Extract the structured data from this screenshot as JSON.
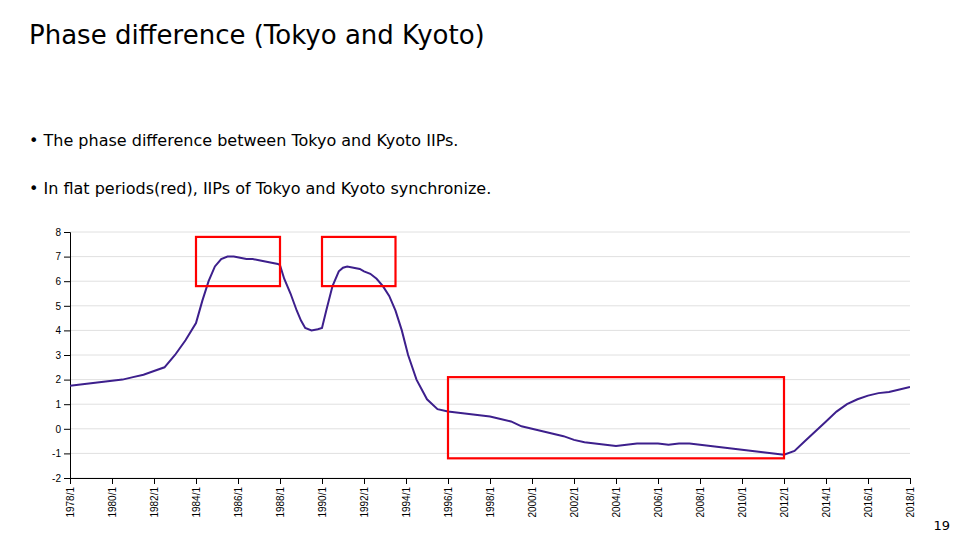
{
  "chart_data": {
    "type": "line",
    "title": "Phase difference (Tokyo and Kyoto)",
    "annotations": [
      "• The phase difference between Tokyo and Kyoto IIPs.",
      "• In flat periods(red), IIPs of Tokyo and Kyoto synchronize.",
      "19"
    ],
    "color": "#3d1f8c",
    "x": [
      1978,
      1978.5,
      1979,
      1979.5,
      1980,
      1980.5,
      1981,
      1981.5,
      1982,
      1982.5,
      1983,
      1983.5,
      1984,
      1984.3,
      1984.6,
      1984.9,
      1985.2,
      1985.5,
      1985.8,
      1986.1,
      1986.4,
      1986.7,
      1987.0,
      1987.3,
      1987.6,
      1987.9,
      1988.0,
      1988.2,
      1988.5,
      1988.8,
      1989.0,
      1989.2,
      1989.5,
      1989.8,
      1990.0,
      1990.2,
      1990.5,
      1990.8,
      1991.0,
      1991.2,
      1991.5,
      1991.8,
      1992.0,
      1992.3,
      1992.6,
      1992.9,
      1993.2,
      1993.5,
      1993.8,
      1994.1,
      1994.5,
      1995.0,
      1995.5,
      1996.0,
      1996.5,
      1997.0,
      1997.5,
      1998.0,
      1998.5,
      1999.0,
      1999.5,
      2000.0,
      2000.5,
      2001.0,
      2001.5,
      2002.0,
      2002.5,
      2003.0,
      2003.5,
      2004.0,
      2004.5,
      2005.0,
      2005.5,
      2006.0,
      2006.5,
      2007.0,
      2007.5,
      2008.0,
      2008.5,
      2009.0,
      2009.5,
      2010.0,
      2010.5,
      2011.0,
      2011.5,
      2012.0,
      2012.5,
      2013.0,
      2013.5,
      2014.0,
      2014.5,
      2015.0,
      2015.5,
      2016.0,
      2016.5,
      2017.0,
      2017.5,
      2018.0
    ],
    "values": [
      1.75,
      1.8,
      1.85,
      1.9,
      1.95,
      2.0,
      2.1,
      2.2,
      2.35,
      2.5,
      3.0,
      3.6,
      4.3,
      5.2,
      6.0,
      6.6,
      6.9,
      7.0,
      7.0,
      6.95,
      6.9,
      6.9,
      6.85,
      6.8,
      6.75,
      6.7,
      6.65,
      6.1,
      5.5,
      4.8,
      4.4,
      4.1,
      4.0,
      4.05,
      4.1,
      4.8,
      5.8,
      6.4,
      6.55,
      6.6,
      6.55,
      6.5,
      6.4,
      6.3,
      6.1,
      5.8,
      5.4,
      4.8,
      4.0,
      3.0,
      2.0,
      1.2,
      0.8,
      0.7,
      0.65,
      0.6,
      0.55,
      0.5,
      0.4,
      0.3,
      0.1,
      0.0,
      -0.1,
      -0.2,
      -0.3,
      -0.45,
      -0.55,
      -0.6,
      -0.65,
      -0.7,
      -0.65,
      -0.6,
      -0.6,
      -0.6,
      -0.65,
      -0.6,
      -0.6,
      -0.65,
      -0.7,
      -0.75,
      -0.8,
      -0.85,
      -0.9,
      -0.95,
      -1.0,
      -1.05,
      -0.9,
      -0.5,
      -0.1,
      0.3,
      0.7,
      1.0,
      1.2,
      1.35,
      1.45,
      1.5,
      1.6,
      1.7
    ],
    "xlim": [
      1978,
      2018
    ],
    "xticks": [
      {
        "value": 1978,
        "label": "1978/1"
      },
      {
        "value": 1980,
        "label": "1980/1"
      },
      {
        "value": 1982,
        "label": "1982/1"
      },
      {
        "value": 1984,
        "label": "1984/1"
      },
      {
        "value": 1986,
        "label": "1986/1"
      },
      {
        "value": 1988,
        "label": "1988/1"
      },
      {
        "value": 1990,
        "label": "1990/1"
      },
      {
        "value": 1992,
        "label": "1992/1"
      },
      {
        "value": 1994,
        "label": "1994/1"
      },
      {
        "value": 1996,
        "label": "1996/1"
      },
      {
        "value": 1998,
        "label": "1998/1"
      },
      {
        "value": 2000,
        "label": "2000/1"
      },
      {
        "value": 2002,
        "label": "2002/1"
      },
      {
        "value": 2004,
        "label": "2004/1"
      },
      {
        "value": 2006,
        "label": "2006/1"
      },
      {
        "value": 2008,
        "label": "2008/1"
      },
      {
        "value": 2010,
        "label": "2010/1"
      },
      {
        "value": 2012,
        "label": "2012/1"
      },
      {
        "value": 2014,
        "label": "2014/1"
      },
      {
        "value": 2016,
        "label": "2016/1"
      },
      {
        "value": 2018,
        "label": "2018/1"
      }
    ],
    "ylim": [
      -2,
      8
    ],
    "yticks": [
      -2,
      -1,
      0,
      1,
      2,
      3,
      4,
      5,
      6,
      7,
      8
    ],
    "grid": true,
    "boxes": [
      {
        "x0": 1984.0,
        "x1": 1988.0,
        "y0": 5.8,
        "y1": 7.8,
        "color": "red"
      },
      {
        "x0": 1990.0,
        "x1": 1993.5,
        "y0": 5.8,
        "y1": 7.8,
        "color": "red"
      },
      {
        "x0": 1996.0,
        "x1": 2012.0,
        "y0": -1.2,
        "y1": 2.1,
        "color": "red"
      }
    ]
  }
}
